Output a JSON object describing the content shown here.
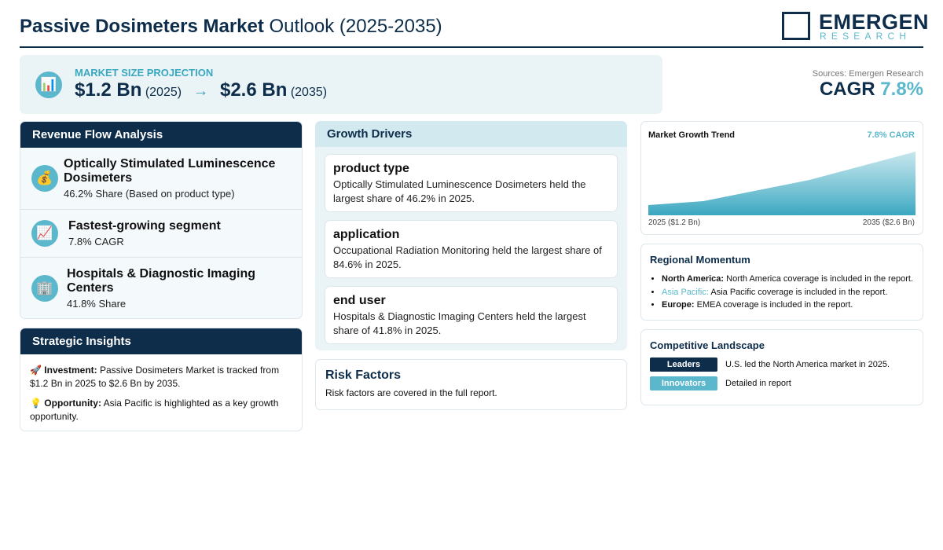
{
  "header": {
    "title_bold": "Passive Dosimeters Market",
    "title_rest": "Outlook (2025-2035)",
    "logo_top": "EMERGEN",
    "logo_bottom": "RESEARCH"
  },
  "projection": {
    "icon": "📊",
    "label": "MARKET SIZE PROJECTION",
    "start_value": "$1.2 Bn",
    "start_year": "(2025)",
    "arrow": "→",
    "end_value": "$2.6 Bn",
    "end_year": "(2035)"
  },
  "summary": {
    "sources": "Sources: Emergen Research",
    "cagr_label": "CAGR",
    "cagr_value": "7.8%"
  },
  "revenue_flow": {
    "title": "Revenue Flow Analysis",
    "items": [
      {
        "icon": "💰",
        "title": "Optically Stimulated Luminescence Dosimeters",
        "subtitle": "46.2% Share (Based on product type)"
      },
      {
        "icon": "📈",
        "title": "Fastest-growing segment",
        "subtitle": "7.8% CAGR"
      },
      {
        "icon": "🏢",
        "title": "Hospitals & Diagnostic Imaging Centers",
        "subtitle": "41.8% Share"
      }
    ]
  },
  "strategic_insights": {
    "title": "Strategic Insights",
    "items": [
      {
        "icon": "🚀",
        "label": "Investment:",
        "text": "Passive Dosimeters Market is tracked from $1.2 Bn in 2025 to $2.6 Bn by 2035."
      },
      {
        "icon": "💡",
        "label": "Opportunity:",
        "text": "Asia Pacific is highlighted as a key growth opportunity."
      }
    ]
  },
  "growth_drivers": {
    "title": "Growth Drivers",
    "items": [
      {
        "title": "product type",
        "text": "Optically Stimulated Luminescence Dosimeters held the largest share of 46.2% in 2025."
      },
      {
        "title": "application",
        "text": "Occupational Radiation Monitoring held the largest share of 84.6% in 2025."
      },
      {
        "title": "end user",
        "text": "Hospitals & Diagnostic Imaging Centers held the largest share of 41.8% in 2025."
      }
    ]
  },
  "risk_factors": {
    "title": "Risk Factors",
    "text": "Risk factors are covered in the full report."
  },
  "trend": {
    "title": "Market Growth Trend",
    "cagr": "7.8% CAGR",
    "start_label": "2025 ($1.2 Bn)",
    "end_label": "2035 ($2.6 Bn)"
  },
  "regional": {
    "title": "Regional Momentum",
    "items": [
      {
        "region": "North America:",
        "text": "North America coverage is included in the report."
      },
      {
        "region": "Asia Pacific:",
        "text": "Asia Pacific coverage is included in the report."
      },
      {
        "region": "Europe:",
        "text": "EMEA coverage is included in the report."
      }
    ]
  },
  "competitive": {
    "title": "Competitive Landscape",
    "rows": [
      {
        "badge": "Leaders",
        "text": "U.S. led the North America market in 2025."
      },
      {
        "badge": "Innovators",
        "text": "Detailed in report"
      }
    ]
  }
}
